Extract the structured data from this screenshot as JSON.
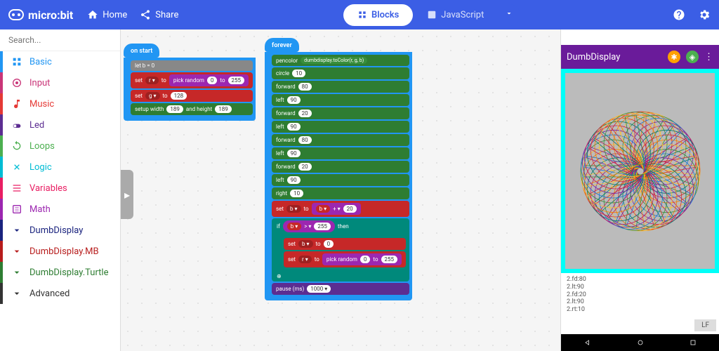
{
  "topbar": {
    "logo": "micro:bit",
    "home": "Home",
    "share": "Share",
    "blocks_tab": "Blocks",
    "js_tab": "JavaScript"
  },
  "search": {
    "placeholder": "Search..."
  },
  "categories": [
    {
      "name": "basic",
      "label": "Basic"
    },
    {
      "name": "input",
      "label": "Input"
    },
    {
      "name": "music",
      "label": "Music"
    },
    {
      "name": "led",
      "label": "Led"
    },
    {
      "name": "loops",
      "label": "Loops"
    },
    {
      "name": "logic",
      "label": "Logic"
    },
    {
      "name": "variables",
      "label": "Variables"
    },
    {
      "name": "math",
      "label": "Math"
    },
    {
      "name": "dd",
      "label": "DumbDisplay"
    },
    {
      "name": "ddmb",
      "label": "DumbDisplay.MB"
    },
    {
      "name": "ddt",
      "label": "DumbDisplay.Turtle"
    },
    {
      "name": "adv",
      "label": "Advanced"
    }
  ],
  "on_start": {
    "hat": "on start",
    "let_b": "let b = 0",
    "set_r": {
      "lhs": "set",
      "var": "r ▾",
      "to": "to",
      "op": "pick random",
      "from": "0",
      "to2": "to",
      "max": "255"
    },
    "set_g": {
      "lhs": "set",
      "var": "g ▾",
      "to": "to",
      "val": "128"
    },
    "setup": {
      "lhs": "setup width",
      "w": "189",
      "mid": "and height",
      "h": "189"
    }
  },
  "forever": {
    "hat": "forever",
    "pencolor": {
      "lhs": "pencolor",
      "arg": "dumbdisplay.toColor(r, g, b)"
    },
    "rows": [
      {
        "cmd": "circle",
        "val": "10"
      },
      {
        "cmd": "forward",
        "val": "80"
      },
      {
        "cmd": "left",
        "val": "90"
      },
      {
        "cmd": "forward",
        "val": "20"
      },
      {
        "cmd": "left",
        "val": "90"
      },
      {
        "cmd": "forward",
        "val": "80"
      },
      {
        "cmd": "left",
        "val": "90"
      },
      {
        "cmd": "forward",
        "val": "20"
      },
      {
        "cmd": "left",
        "val": "90"
      },
      {
        "cmd": "right",
        "val": "10"
      }
    ],
    "set_b_plus": {
      "lhs": "set",
      "var": "b ▾",
      "to": "to",
      "inner_var": "b ▾",
      "op": "+ ▾",
      "val": "20"
    },
    "if_cond": {
      "if": "if",
      "var": "b ▾",
      "op": "> ▾",
      "val": "255",
      "then": "then"
    },
    "set_b0": {
      "lhs": "set",
      "var": "b ▾",
      "to": "to",
      "val": "0"
    },
    "set_r2": {
      "lhs": "set",
      "var": "r ▾",
      "to": "to",
      "op": "pick random",
      "from": "0",
      "to2": "to",
      "max": "255"
    },
    "pause": {
      "lhs": "pause (ms)",
      "val": "1000 ▾"
    }
  },
  "sim": {
    "title": "DumbDisplay",
    "log": [
      "2.fd:80",
      "2.lt:90",
      "2.fd:20",
      "2.lt:90",
      "2.rt:10"
    ],
    "lf": "LF"
  }
}
